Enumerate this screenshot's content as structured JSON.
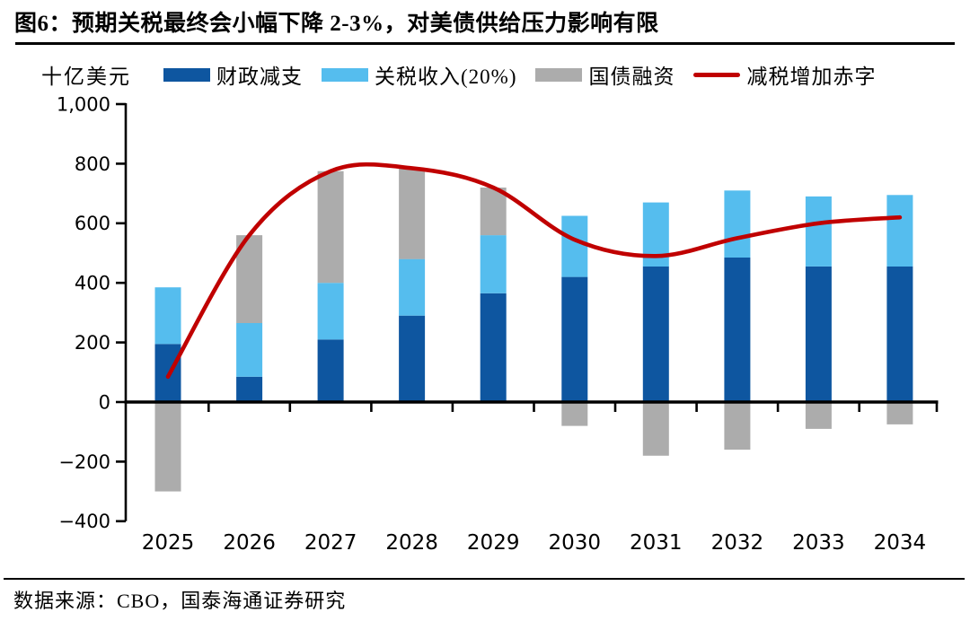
{
  "header": {
    "title": "图6：预期关税最终会小幅下降 2-3%，对美债供给压力影响有限"
  },
  "footer": {
    "source": "数据来源：CBO，国泰海通证券研究"
  },
  "colors": {
    "fiscal_bar": "#0E56A0",
    "tariff_bar": "#55BDEE",
    "treasury_bar": "#ACACAC",
    "deficit_line": "#C00000",
    "axis": "#000000",
    "text": "#000000"
  },
  "chart_data": {
    "type": "bar",
    "subtype": "stacked-bars-with-smooth-line",
    "title": "图6：预期关税最终会小幅下降 2-3%，对美债供给压力影响有限",
    "ylabel": "十亿美元",
    "xlabel": "",
    "categories": [
      "2025",
      "2026",
      "2027",
      "2028",
      "2029",
      "2030",
      "2031",
      "2032",
      "2033",
      "2034"
    ],
    "series": [
      {
        "name": "财政减支",
        "type": "bar",
        "color": "#0E56A0",
        "values": [
          195,
          85,
          210,
          290,
          365,
          420,
          455,
          485,
          455,
          455
        ]
      },
      {
        "name": "关税收入(20%)",
        "type": "bar",
        "color": "#55BDEE",
        "values": [
          190,
          180,
          190,
          190,
          195,
          205,
          215,
          225,
          235,
          240
        ]
      },
      {
        "name": "国债融资",
        "type": "bar",
        "color": "#ACACAC",
        "values": [
          -300,
          295,
          375,
          305,
          160,
          -80,
          -180,
          -160,
          -90,
          -75
        ]
      },
      {
        "name": "减税增加赤字",
        "type": "line",
        "color": "#C00000",
        "values": [
          85,
          560,
          775,
          785,
          720,
          545,
          490,
          550,
          600,
          620
        ]
      }
    ],
    "ylim": [
      -400,
      1000
    ],
    "ytick_step": 200,
    "ytick_values": [
      1000,
      800,
      600,
      400,
      200,
      0,
      -200,
      -400
    ],
    "ytick_labels": [
      "1,000",
      "800",
      "600",
      "400",
      "200",
      "0",
      "−200",
      "−400"
    ],
    "grid": false,
    "legend_position": "top"
  }
}
